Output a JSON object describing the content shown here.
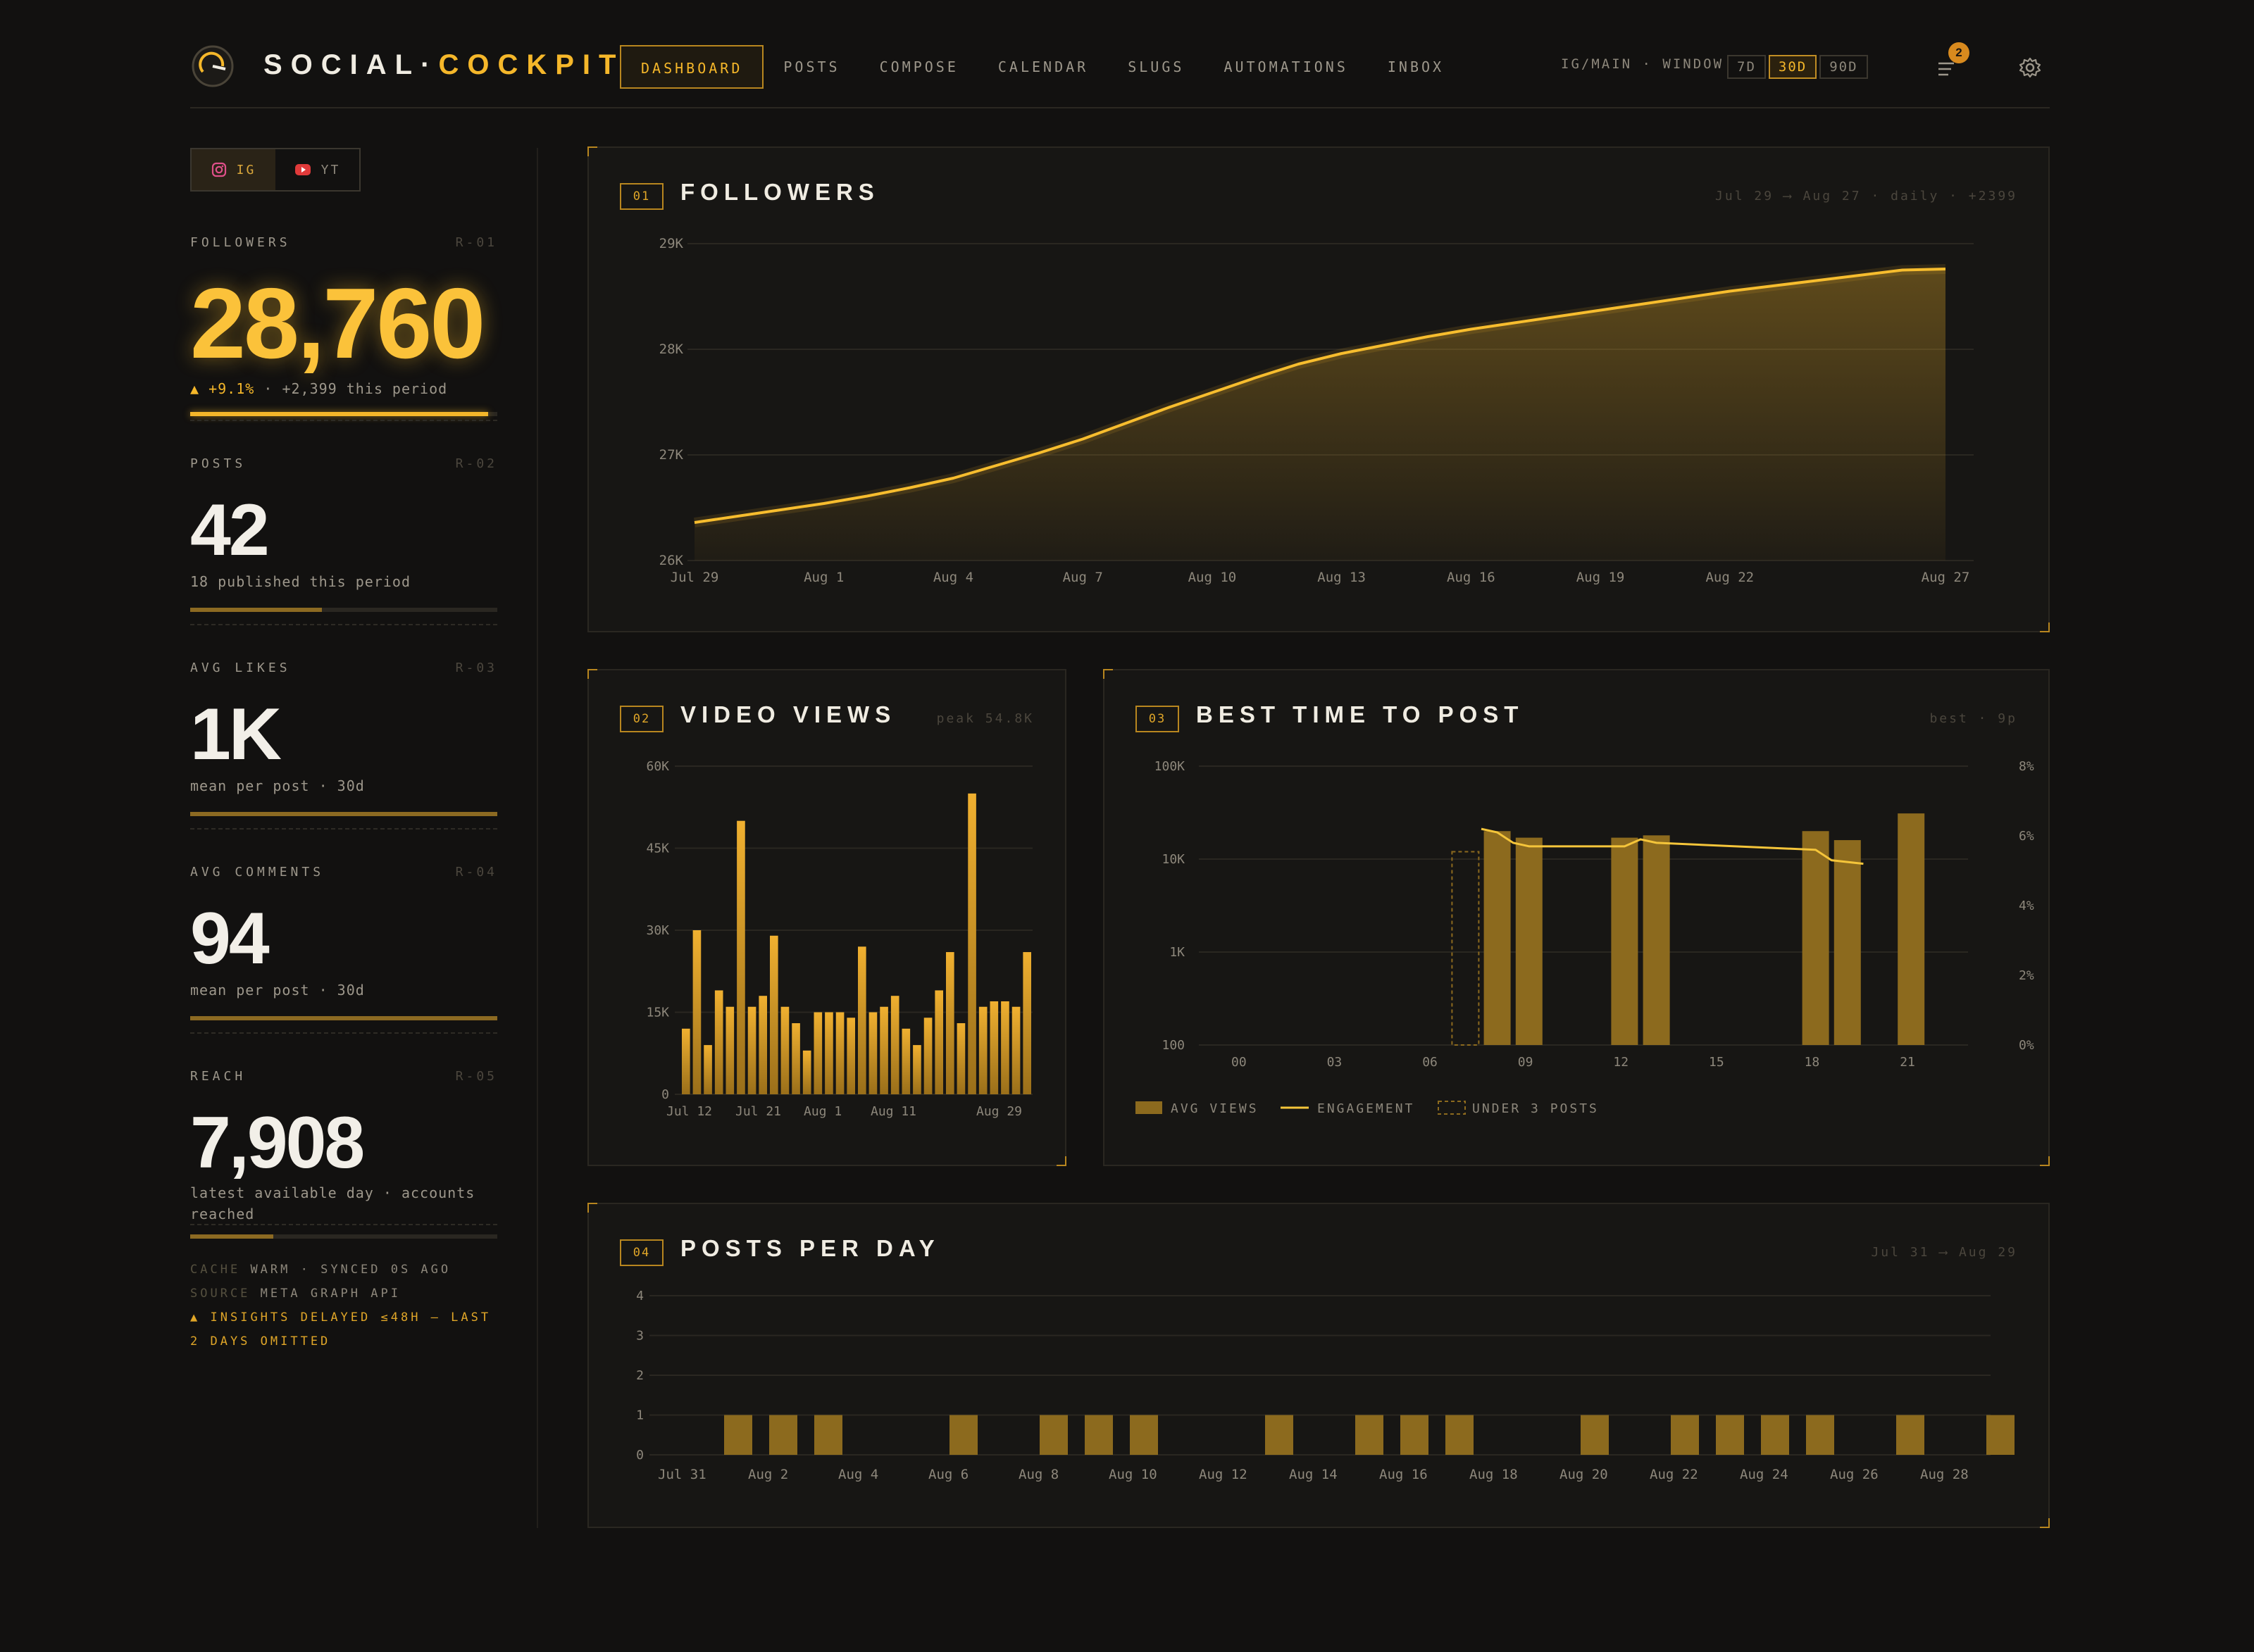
{
  "app": {
    "brand_main": "SOCIAL·",
    "brand_accent": "COCKPIT"
  },
  "nav": {
    "items": [
      {
        "label": "DASHBOARD",
        "active": true
      },
      {
        "label": "POSTS"
      },
      {
        "label": "COMPOSE"
      },
      {
        "label": "CALENDAR"
      },
      {
        "label": "SLUGS"
      },
      {
        "label": "AUTOMATIONS"
      },
      {
        "label": "INBOX"
      }
    ]
  },
  "header": {
    "account": "IG/MAIN · WINDOW",
    "window_options": [
      "7D",
      "30D",
      "90D"
    ],
    "window_selected": "30D",
    "notifications": "2"
  },
  "sidebar": {
    "platform_tabs": [
      {
        "label": "IG",
        "icon": "instagram-icon",
        "active": true
      },
      {
        "label": "YT",
        "icon": "youtube-icon"
      }
    ],
    "metrics": [
      {
        "label": "FOLLOWERS",
        "ref": "R-01",
        "value": "28,760",
        "change": "+9.1%",
        "sub": "· +2,399 this period",
        "progress": 0.97
      },
      {
        "label": "POSTS",
        "ref": "R-02",
        "value": "42",
        "sub": "18 published this period",
        "progress": 0.43
      },
      {
        "label": "AVG LIKES",
        "ref": "R-03",
        "value": "1K",
        "sub": "mean per post · 30d",
        "progress": 1.0
      },
      {
        "label": "AVG COMMENTS",
        "ref": "R-04",
        "value": "94",
        "sub": "mean per post · 30d",
        "progress": 1.0
      },
      {
        "label": "REACH",
        "ref": "R-05",
        "value": "7,908",
        "sub": "latest available day · accounts reached",
        "progress": 0.27
      }
    ],
    "status": {
      "cache_key": "CACHE",
      "cache_val": "WARM · SYNCED 0S AGO",
      "source_key": "SOURCE",
      "source_val": "META GRAPH API",
      "warning": "INSIGHTS DELAYED ≤48H — LAST 2 DAYS OMITTED"
    }
  },
  "panels": {
    "followers": {
      "num": "01",
      "title": "FOLLOWERS",
      "meta": "Jul 29 ⟶ Aug 27 · daily · +2399"
    },
    "video_views": {
      "num": "02",
      "title": "VIDEO VIEWS",
      "meta": "peak 54.8K"
    },
    "best_time": {
      "num": "03",
      "title": "BEST TIME TO POST",
      "meta": "best · 9p"
    },
    "posts_per_day": {
      "num": "04",
      "title": "POSTS PER DAY",
      "meta": "Jul 31 ⟶ Aug 29"
    }
  },
  "chart_data": [
    {
      "id": "followers",
      "type": "area",
      "x": [
        "Jul 29",
        "Jul 30",
        "Jul 31",
        "Aug 1",
        "Aug 2",
        "Aug 3",
        "Aug 4",
        "Aug 5",
        "Aug 6",
        "Aug 7",
        "Aug 8",
        "Aug 9",
        "Aug 10",
        "Aug 11",
        "Aug 12",
        "Aug 13",
        "Aug 14",
        "Aug 15",
        "Aug 16",
        "Aug 17",
        "Aug 18",
        "Aug 19",
        "Aug 20",
        "Aug 21",
        "Aug 22",
        "Aug 23",
        "Aug 24",
        "Aug 25",
        "Aug 26",
        "Aug 27"
      ],
      "series": [
        {
          "values": [
            26360,
            26420,
            26480,
            26540,
            26610,
            26690,
            26780,
            26900,
            27020,
            27150,
            27300,
            27450,
            27590,
            27730,
            27860,
            27960,
            28040,
            28120,
            28190,
            28250,
            28310,
            28370,
            28430,
            28490,
            28550,
            28600,
            28650,
            28700,
            28750,
            28760
          ]
        }
      ],
      "xticks": [
        "Jul 29",
        "Aug 1",
        "Aug 4",
        "Aug 7",
        "Aug 10",
        "Aug 13",
        "Aug 16",
        "Aug 19",
        "Aug 22",
        "Aug 27"
      ],
      "yticks": [
        "26K",
        "27K",
        "28K",
        "29K"
      ],
      "ylim": [
        26000,
        29000
      ]
    },
    {
      "id": "video_views",
      "type": "bar",
      "values": [
        12000,
        30000,
        9000,
        19000,
        16000,
        50000,
        16000,
        18000,
        29000,
        16000,
        13000,
        8000,
        15000,
        15000,
        15000,
        14000,
        27000,
        15000,
        16000,
        18000,
        12000,
        9000,
        14000,
        19000,
        26000,
        13000,
        55000,
        16000,
        17000,
        17000,
        16000,
        26000
      ],
      "xticks": [
        "Jul 12",
        "Jul 21",
        "Aug 1",
        "Aug 11",
        "Aug 29"
      ],
      "yticks": [
        "0",
        "15K",
        "30K",
        "45K",
        "60K"
      ],
      "ylim": [
        0,
        60000
      ]
    },
    {
      "id": "best_time",
      "type": "bar",
      "y_scale": "log",
      "x_hours": [
        7,
        8,
        9,
        12,
        13,
        18,
        19,
        21
      ],
      "avg_views": [
        null,
        20000,
        17000,
        17000,
        18000,
        20000,
        16000,
        31000
      ],
      "under_3_posts": [
        true,
        false,
        false,
        false,
        false,
        false,
        false,
        false
      ],
      "under_3_value": 12000,
      "engagement_hours": [
        7.5,
        8,
        8.5,
        9,
        12,
        12.5,
        13,
        18,
        18.5,
        19.5
      ],
      "engagement": [
        6.2,
        6.1,
        5.8,
        5.7,
        5.7,
        5.9,
        5.8,
        5.6,
        5.3,
        5.2
      ],
      "xticks": [
        "00",
        "03",
        "06",
        "09",
        "12",
        "15",
        "18",
        "21"
      ],
      "yticks_left": [
        "100",
        "1K",
        "10K",
        "100K"
      ],
      "yticks_right": [
        "0%",
        "2%",
        "4%",
        "6%",
        "8%"
      ],
      "legend": [
        "AVG VIEWS",
        "ENGAGEMENT",
        "UNDER 3 POSTS"
      ]
    },
    {
      "id": "posts_per_day",
      "type": "bar",
      "x": [
        "Jul 31",
        "Aug 1",
        "Aug 2",
        "Aug 3",
        "Aug 4",
        "Aug 5",
        "Aug 6",
        "Aug 7",
        "Aug 8",
        "Aug 9",
        "Aug 10",
        "Aug 11",
        "Aug 12",
        "Aug 13",
        "Aug 14",
        "Aug 15",
        "Aug 16",
        "Aug 17",
        "Aug 18",
        "Aug 19",
        "Aug 20",
        "Aug 21",
        "Aug 22",
        "Aug 23",
        "Aug 24",
        "Aug 25",
        "Aug 26",
        "Aug 27",
        "Aug 28",
        "Aug 29"
      ],
      "values": [
        0,
        1,
        1,
        1,
        0,
        0,
        1,
        0,
        1,
        1,
        1,
        0,
        0,
        1,
        0,
        1,
        1,
        1,
        0,
        0,
        1,
        0,
        1,
        1,
        1,
        1,
        0,
        1,
        0,
        1
      ],
      "xticks": [
        "Jul 31",
        "Aug 2",
        "Aug 4",
        "Aug 6",
        "Aug 8",
        "Aug 10",
        "Aug 12",
        "Aug 14",
        "Aug 16",
        "Aug 18",
        "Aug 20",
        "Aug 22",
        "Aug 24",
        "Aug 26",
        "Aug 28"
      ],
      "yticks": [
        "0",
        "1",
        "2",
        "3",
        "4"
      ],
      "ylim": [
        0,
        4
      ]
    }
  ],
  "colors": {
    "accent": "#f5b72a",
    "bar": "#8c6a1e",
    "panel": "#171614",
    "background": "#121110"
  }
}
